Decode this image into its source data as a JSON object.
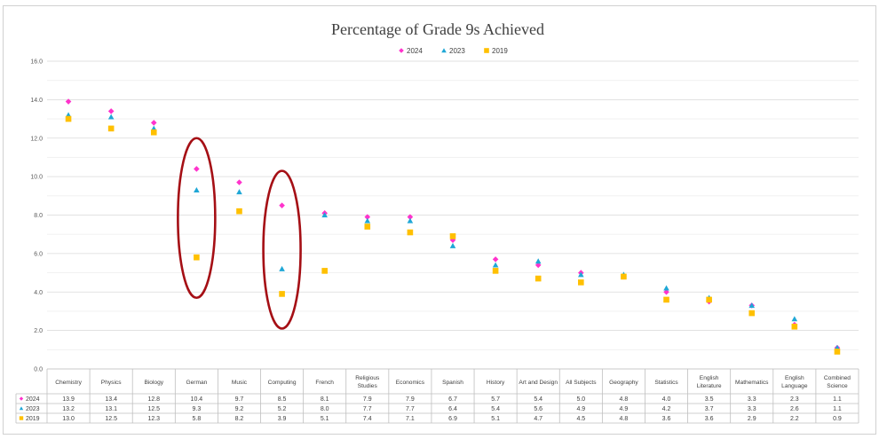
{
  "chart_data": {
    "type": "scatter",
    "title": "Percentage of Grade 9s Achieved",
    "xlabel": "",
    "ylabel": "",
    "ylim": [
      0,
      16
    ],
    "yticks": [
      "0.0",
      "2.0",
      "4.0",
      "6.0",
      "8.0",
      "10.0",
      "12.0",
      "14.0",
      "16.0"
    ],
    "grid": true,
    "legend": "top-center",
    "categories": [
      "Chemistry",
      "Physics",
      "Biology",
      "German",
      "Music",
      "Computing",
      "French",
      "Religious Studies",
      "Economics",
      "Spanish",
      "History",
      "Art and Design",
      "All Subjects",
      "Geography",
      "Statistics",
      "English Literature",
      "Mathematics",
      "English Language",
      "Combined Science"
    ],
    "series": [
      {
        "name": "2024",
        "marker": "diamond",
        "color": "#ff33cc",
        "values": [
          13.9,
          13.4,
          12.8,
          10.4,
          9.7,
          8.5,
          8.1,
          7.9,
          7.9,
          6.7,
          5.7,
          5.4,
          5.0,
          4.8,
          4.0,
          3.5,
          3.3,
          2.3,
          1.1
        ],
        "labels": [
          "13.9",
          "13.4",
          "12.8",
          "10.4",
          "9.7",
          "8.5",
          "8.1",
          "7.9",
          "7.9",
          "6.7",
          "5.7",
          "5.4",
          "5.0",
          "4.8",
          "4.0",
          "3.5",
          "3.3",
          "2.3",
          "1.1"
        ]
      },
      {
        "name": "2023",
        "marker": "triangle",
        "color": "#1fa7d6",
        "values": [
          13.2,
          13.1,
          12.5,
          9.3,
          9.2,
          5.2,
          8.0,
          7.7,
          7.7,
          6.4,
          5.4,
          5.6,
          4.9,
          4.9,
          4.2,
          3.7,
          3.3,
          2.6,
          1.1
        ],
        "labels": [
          "13.2",
          "13.1",
          "12.5",
          "9.3",
          "9.2",
          "5.2",
          "8.0",
          "7.7",
          "7.7",
          "6.4",
          "5.4",
          "5.6",
          "4.9",
          "4.9",
          "4.2",
          "3.7",
          "3.3",
          "2.6",
          "1.1"
        ]
      },
      {
        "name": "2019",
        "marker": "square",
        "color": "#ffc000",
        "values": [
          13.0,
          12.5,
          12.3,
          5.8,
          8.2,
          3.9,
          5.1,
          7.4,
          7.1,
          6.9,
          5.1,
          4.7,
          4.5,
          4.8,
          3.6,
          3.6,
          2.9,
          2.2,
          0.9
        ],
        "labels": [
          "13.0",
          "12.5",
          "12.3",
          "5.8",
          "8.2",
          "3.9",
          "5.1",
          "7.4",
          "7.1",
          "6.9",
          "5.1",
          "4.7",
          "4.5",
          "4.8",
          "3.6",
          "3.6",
          "2.9",
          "2.2",
          "0.9"
        ]
      }
    ],
    "annotations": [
      {
        "shape": "ellipse",
        "color": "#a50f15",
        "category": "German",
        "y_from": 3.7,
        "y_to": 12.0
      },
      {
        "shape": "ellipse",
        "color": "#a50f15",
        "category": "Computing",
        "y_from": 2.1,
        "y_to": 10.3
      }
    ],
    "data_table": true
  }
}
